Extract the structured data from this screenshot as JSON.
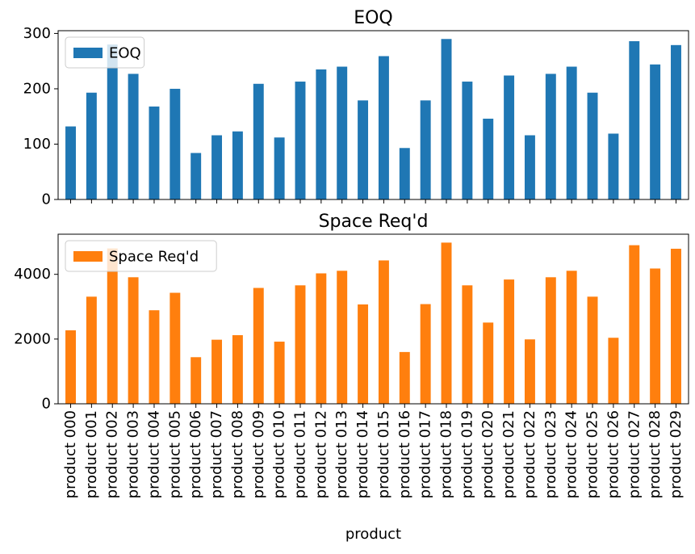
{
  "chart_data": [
    {
      "type": "bar",
      "title": "EOQ",
      "xlabel": "",
      "ylabel": "",
      "categories": [
        "product 000",
        "product 001",
        "product 002",
        "product 003",
        "product 004",
        "product 005",
        "product 006",
        "product 007",
        "product 008",
        "product 009",
        "product 010",
        "product 011",
        "product 012",
        "product 013",
        "product 014",
        "product 015",
        "product 016",
        "product 017",
        "product 018",
        "product 019",
        "product 020",
        "product 021",
        "product 022",
        "product 023",
        "product 024",
        "product 025",
        "product 026",
        "product 027",
        "product 028",
        "product 029"
      ],
      "series": [
        {
          "name": "EOQ",
          "color": "#1f77b4",
          "values": [
            132,
            193,
            280,
            227,
            168,
            200,
            84,
            116,
            123,
            209,
            112,
            213,
            235,
            240,
            179,
            259,
            93,
            179,
            290,
            213,
            146,
            224,
            116,
            227,
            240,
            193,
            119,
            286,
            244,
            279
          ]
        }
      ],
      "ylim": [
        0,
        305
      ],
      "yticks": [
        0,
        100,
        200,
        300
      ],
      "legend": "upper-left",
      "grid": false
    },
    {
      "type": "bar",
      "title": "Space Req'd",
      "xlabel": "product",
      "ylabel": "",
      "categories": [
        "product 000",
        "product 001",
        "product 002",
        "product 003",
        "product 004",
        "product 005",
        "product 006",
        "product 007",
        "product 008",
        "product 009",
        "product 010",
        "product 011",
        "product 012",
        "product 013",
        "product 014",
        "product 015",
        "product 016",
        "product 017",
        "product 018",
        "product 019",
        "product 020",
        "product 021",
        "product 022",
        "product 023",
        "product 024",
        "product 025",
        "product 026",
        "product 027",
        "product 028",
        "product 029"
      ],
      "series": [
        {
          "name": "Space Req'd",
          "color": "#ff7f0e",
          "values": [
            2270,
            3310,
            4800,
            3910,
            2890,
            3430,
            1440,
            1980,
            2120,
            3580,
            1920,
            3660,
            4030,
            4110,
            3070,
            4430,
            1600,
            3080,
            4980,
            3660,
            2510,
            3840,
            1990,
            3910,
            4110,
            3310,
            2040,
            4900,
            4180,
            4790
          ]
        }
      ],
      "ylim": [
        0,
        5240
      ],
      "yticks": [
        0,
        2000,
        4000
      ],
      "legend": "upper-left",
      "grid": false
    }
  ]
}
